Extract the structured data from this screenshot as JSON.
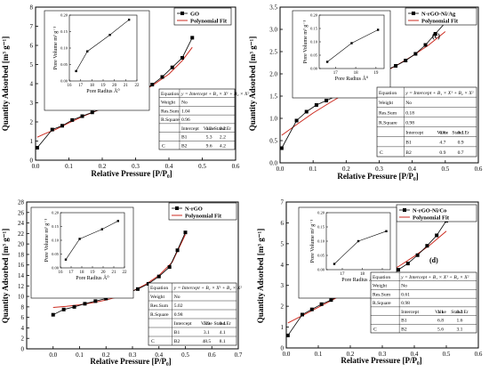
{
  "chart_data": [
    {
      "type": "scatter",
      "panel": "(a)",
      "ylabel": "Quantity Adsorbed [m³ g⁻¹]",
      "xlabel": "Relative Pressure [P/P₀]",
      "xlim": [
        0.0,
        0.6
      ],
      "ylim": [
        0,
        8
      ],
      "xticks": [
        "0.0",
        "0.1",
        "0.2",
        "0.3",
        "0.4",
        "0.5",
        "0.6"
      ],
      "yticks": [
        "0",
        "1",
        "2",
        "3",
        "4",
        "5",
        "6",
        "7",
        "8"
      ],
      "legend": {
        "position": "top-right",
        "data": "GO",
        "fit": "Polynomial Fit"
      },
      "series": [
        {
          "name": "GO",
          "x": [
            0.005,
            0.05,
            0.08,
            0.11,
            0.14,
            0.17,
            0.2,
            0.23,
            0.26,
            0.29,
            0.32,
            0.35,
            0.38,
            0.41,
            0.44,
            0.47
          ],
          "y": [
            0.65,
            1.6,
            1.8,
            2.1,
            2.3,
            2.5,
            2.7,
            2.9,
            3.15,
            3.35,
            3.6,
            3.95,
            4.35,
            4.85,
            5.35,
            6.4
          ]
        },
        {
          "name": "Polynomial Fit",
          "x": [
            0.005,
            0.03,
            0.06,
            0.1,
            0.15,
            0.2,
            0.25,
            0.3,
            0.35,
            0.4,
            0.44,
            0.47
          ],
          "y": [
            1.2,
            1.4,
            1.6,
            1.95,
            2.35,
            2.7,
            3.05,
            3.45,
            3.9,
            4.5,
            5.2,
            5.9
          ]
        }
      ],
      "inset": {
        "xlabel": "Pore Radius Å⁰",
        "ylabel": "Pore Volume m³ g⁻¹",
        "xlim": [
          16,
          22
        ],
        "ylim": [
          0.0,
          0.2
        ],
        "xticks": [
          "16",
          "17",
          "18",
          "19",
          "20",
          "21",
          "22"
        ],
        "yticks": [
          "0.00",
          "0.05",
          "0.10",
          "0.15",
          "0.20"
        ],
        "x": [
          16.6,
          17.6,
          19.6,
          21.3
        ],
        "y": [
          0.03,
          0.09,
          0.14,
          0.186
        ]
      },
      "table": {
        "equation": "y = Intercept + B₁ × X¹ + B₂ × X²",
        "weight": "No",
        "res_sum": "1.04",
        "r_square": "0.96",
        "rows": [
          [
            "Intercept",
            "1.2",
            "0.2"
          ],
          [
            "B1",
            "5.3",
            "2.2"
          ],
          [
            "B2",
            "9.6",
            "4.2"
          ]
        ]
      }
    },
    {
      "type": "scatter",
      "panel": "(c)",
      "ylabel": "Quantity Adsorbed [m³ g⁻¹]",
      "xlabel": "Relative Pressure [P/P₀]",
      "xlim": [
        0.0,
        0.6
      ],
      "ylim": [
        0,
        3.5
      ],
      "xticks": [
        "0.0",
        "0.1",
        "0.2",
        "0.3",
        "0.4",
        "0.5",
        "0.6"
      ],
      "yticks": [
        "0.0",
        "0.5",
        "1.0",
        "1.5",
        "2.0",
        "2.5",
        "3.0",
        "3.5"
      ],
      "legend": {
        "position": "top-right",
        "data": "N-rGO-Ni/Ag",
        "fit": "Polynomial Fit"
      },
      "series": [
        {
          "name": "N-rGO-Ni/Ag",
          "x": [
            0.005,
            0.05,
            0.08,
            0.11,
            0.14,
            0.17,
            0.2,
            0.23,
            0.26,
            0.29,
            0.32,
            0.35,
            0.38,
            0.41,
            0.44,
            0.47,
            0.5
          ],
          "y": [
            0.33,
            0.95,
            1.15,
            1.3,
            1.4,
            1.5,
            1.62,
            1.72,
            1.82,
            1.95,
            2.08,
            2.18,
            2.3,
            2.45,
            2.65,
            2.9,
            3.15
          ]
        },
        {
          "name": "Polynomial Fit",
          "x": [
            0.005,
            0.05,
            0.1,
            0.15,
            0.2,
            0.25,
            0.3,
            0.35,
            0.4,
            0.45,
            0.5
          ],
          "y": [
            0.62,
            0.86,
            1.12,
            1.35,
            1.57,
            1.78,
            1.98,
            2.18,
            2.4,
            2.65,
            2.95
          ]
        }
      ],
      "inset": {
        "xlabel": "Pore Radius Å⁰",
        "ylabel": "Pore Volume m³ g⁻¹",
        "xlim": [
          16.2,
          19.4
        ],
        "ylim": [
          0.0,
          0.2
        ],
        "xticks": [
          "17",
          "18",
          "19"
        ],
        "yticks": [
          "0.00",
          "0.05",
          "0.10",
          "0.15",
          "0.20"
        ],
        "x": [
          16.6,
          17.8,
          19.1
        ],
        "y": [
          0.025,
          0.095,
          0.145
        ]
      },
      "table": {
        "equation": "y = Intercept + B₁ × X¹ + B₂ × X²",
        "weight": "No",
        "res_sum": "0.18",
        "r_square": "0.98",
        "rows": [
          [
            "Intercept",
            "0.6",
            "0.1"
          ],
          [
            "B1",
            "4.7",
            "0.9"
          ],
          [
            "B2",
            "0.9",
            "0.7"
          ]
        ]
      }
    },
    {
      "type": "scatter",
      "panel": "(b)",
      "ylabel": "Quantity Adsorbed [m³ g⁻¹]",
      "xlabel": "Relative Pressure [P/P₀]",
      "xlim": [
        -0.1,
        0.7
      ],
      "ylim": [
        0,
        28
      ],
      "xticks": [
        "0.0",
        "0.1",
        "0.2",
        "0.3",
        "0.4",
        "0.5",
        "0.6",
        "0.7"
      ],
      "yticks": [
        "0",
        "2",
        "4",
        "6",
        "8",
        "10",
        "12",
        "14",
        "16",
        "18",
        "20",
        "22",
        "24",
        "26",
        "28"
      ],
      "legend": {
        "position": "top-right",
        "data": "N-rGO",
        "fit": "Polynomial Fit"
      },
      "series": [
        {
          "name": "N-rGO",
          "x": [
            0.0,
            0.04,
            0.08,
            0.12,
            0.16,
            0.2,
            0.24,
            0.28,
            0.32,
            0.36,
            0.4,
            0.44,
            0.47,
            0.5
          ],
          "y": [
            6.5,
            7.5,
            8.0,
            8.6,
            9.1,
            9.6,
            10.1,
            10.7,
            11.4,
            12.4,
            13.8,
            15.6,
            18.8,
            22.2
          ]
        },
        {
          "name": "Polynomial Fit",
          "x": [
            0.0,
            0.05,
            0.1,
            0.15,
            0.2,
            0.25,
            0.3,
            0.35,
            0.4,
            0.45,
            0.5
          ],
          "y": [
            7.9,
            8.1,
            8.4,
            8.8,
            9.3,
            10.0,
            11.0,
            12.3,
            14.0,
            16.5,
            21.8
          ]
        }
      ],
      "inset": {
        "xlabel": "Pore Radius Å⁰",
        "ylabel": "Pore Volume m³ g⁻¹",
        "xlim": [
          16,
          22
        ],
        "ylim": [
          0.0,
          0.2
        ],
        "xticks": [
          "16",
          "17",
          "18",
          "19",
          "20",
          "21",
          "22"
        ],
        "yticks": [
          "0.00",
          "0.05",
          "0.10",
          "0.15",
          "0.20"
        ],
        "x": [
          16.5,
          17.8,
          19.9,
          21.4
        ],
        "y": [
          0.03,
          0.105,
          0.14,
          0.17
        ]
      },
      "table": {
        "equation": "y = Intercept + B₁ × X¹ + B₂ × X²",
        "weight": "No",
        "res_sum": "5.02",
        "r_square": "0.98",
        "rows": [
          [
            "Intercept",
            "7.9",
            "0.4"
          ],
          [
            "B1",
            "3.1",
            "4.1"
          ],
          [
            "B2",
            "48.5",
            "8.1"
          ]
        ]
      }
    },
    {
      "type": "scatter",
      "panel": "(d)",
      "ylabel": "Quantity Adsorbed [m³ g⁻¹]",
      "xlabel": "Relative Pressure [P/P₀]",
      "xlim": [
        0.0,
        0.6
      ],
      "ylim": [
        0,
        7
      ],
      "xticks": [
        "0.0",
        "0.1",
        "0.2",
        "0.3",
        "0.4",
        "0.5",
        "0.6"
      ],
      "yticks": [
        "0",
        "1",
        "2",
        "3",
        "4",
        "5",
        "6",
        "7"
      ],
      "legend": {
        "position": "top-right",
        "data": "N-rGO-Ni/Co",
        "fit": "Polynomial Fit"
      },
      "series": [
        {
          "name": "N-rGO-Ni/Co",
          "x": [
            0.005,
            0.05,
            0.08,
            0.11,
            0.14,
            0.17,
            0.2,
            0.23,
            0.26,
            0.29,
            0.32,
            0.35,
            0.38,
            0.41,
            0.44,
            0.47,
            0.5
          ],
          "y": [
            0.6,
            1.6,
            1.85,
            2.1,
            2.3,
            2.55,
            2.75,
            2.95,
            3.1,
            3.3,
            3.5,
            3.75,
            4.05,
            4.45,
            4.9,
            5.4,
            6.1
          ]
        },
        {
          "name": "Polynomial Fit",
          "x": [
            0.005,
            0.05,
            0.1,
            0.15,
            0.2,
            0.25,
            0.3,
            0.35,
            0.4,
            0.45,
            0.5
          ],
          "y": [
            1.2,
            1.55,
            1.95,
            2.35,
            2.75,
            3.1,
            3.5,
            3.9,
            4.4,
            4.95,
            5.6
          ]
        }
      ],
      "inset": {
        "xlabel": "Pore Radius Å⁰",
        "ylabel": "Pore Volume m³ g⁻¹",
        "xlim": [
          16.2,
          19.4
        ],
        "ylim": [
          0.0,
          0.2
        ],
        "xticks": [
          "16",
          "17",
          "18",
          "19"
        ],
        "yticks": [
          "0.00",
          "0.05",
          "0.10",
          "0.15",
          "0.20"
        ],
        "x": [
          16.6,
          17.8,
          19.2
        ],
        "y": [
          0.02,
          0.1,
          0.135
        ]
      },
      "table": {
        "equation": "y = Intercept + B₁ × X¹ + B₂ × X²",
        "weight": "No",
        "res_sum": "0.61",
        "r_square": "0.98",
        "rows": [
          [
            "Intercept",
            "1.1",
            "0.2"
          ],
          [
            "B1",
            "6.8",
            "1.6"
          ],
          [
            "B2",
            "5.6",
            "3.1"
          ]
        ]
      }
    }
  ],
  "table_labels": {
    "equation": "Equation",
    "weight": "Weight",
    "res_sum": "Res.Sum",
    "r_square": "R.Square",
    "value": "Value",
    "stand_er": "Stand.Er",
    "group": "C"
  },
  "colors": {
    "data": "#000000",
    "fit": "#cc2a1f",
    "axis": "#000000"
  }
}
